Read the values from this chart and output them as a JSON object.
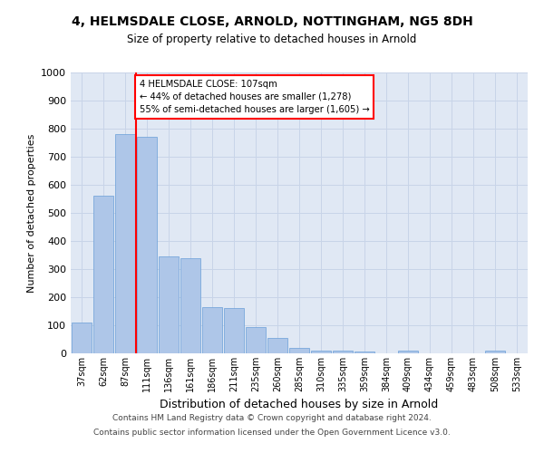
{
  "title": "4, HELMSDALE CLOSE, ARNOLD, NOTTINGHAM, NG5 8DH",
  "subtitle": "Size of property relative to detached houses in Arnold",
  "xlabel": "Distribution of detached houses by size in Arnold",
  "ylabel": "Number of detached properties",
  "categories": [
    "37sqm",
    "62sqm",
    "87sqm",
    "111sqm",
    "136sqm",
    "161sqm",
    "186sqm",
    "211sqm",
    "235sqm",
    "260sqm",
    "285sqm",
    "310sqm",
    "335sqm",
    "359sqm",
    "384sqm",
    "409sqm",
    "434sqm",
    "459sqm",
    "483sqm",
    "508sqm",
    "533sqm"
  ],
  "values": [
    110,
    560,
    780,
    770,
    345,
    340,
    165,
    160,
    95,
    55,
    20,
    10,
    10,
    5,
    0,
    10,
    0,
    0,
    0,
    10,
    0
  ],
  "bar_color": "#aec6e8",
  "bar_edge_color": "#6a9fd8",
  "annotation_line_label": "4 HELMSDALE CLOSE: 107sqm",
  "annotation_line1": "← 44% of detached houses are smaller (1,278)",
  "annotation_line2": "55% of semi-detached houses are larger (1,605) →",
  "annotation_box_color": "white",
  "annotation_box_edge_color": "red",
  "vline_color": "red",
  "grid_color": "#c8d4e8",
  "bg_color": "#e0e8f4",
  "ylim": [
    0,
    1000
  ],
  "yticks": [
    0,
    100,
    200,
    300,
    400,
    500,
    600,
    700,
    800,
    900,
    1000
  ],
  "footnote1": "Contains HM Land Registry data © Crown copyright and database right 2024.",
  "footnote2": "Contains public sector information licensed under the Open Government Licence v3.0."
}
